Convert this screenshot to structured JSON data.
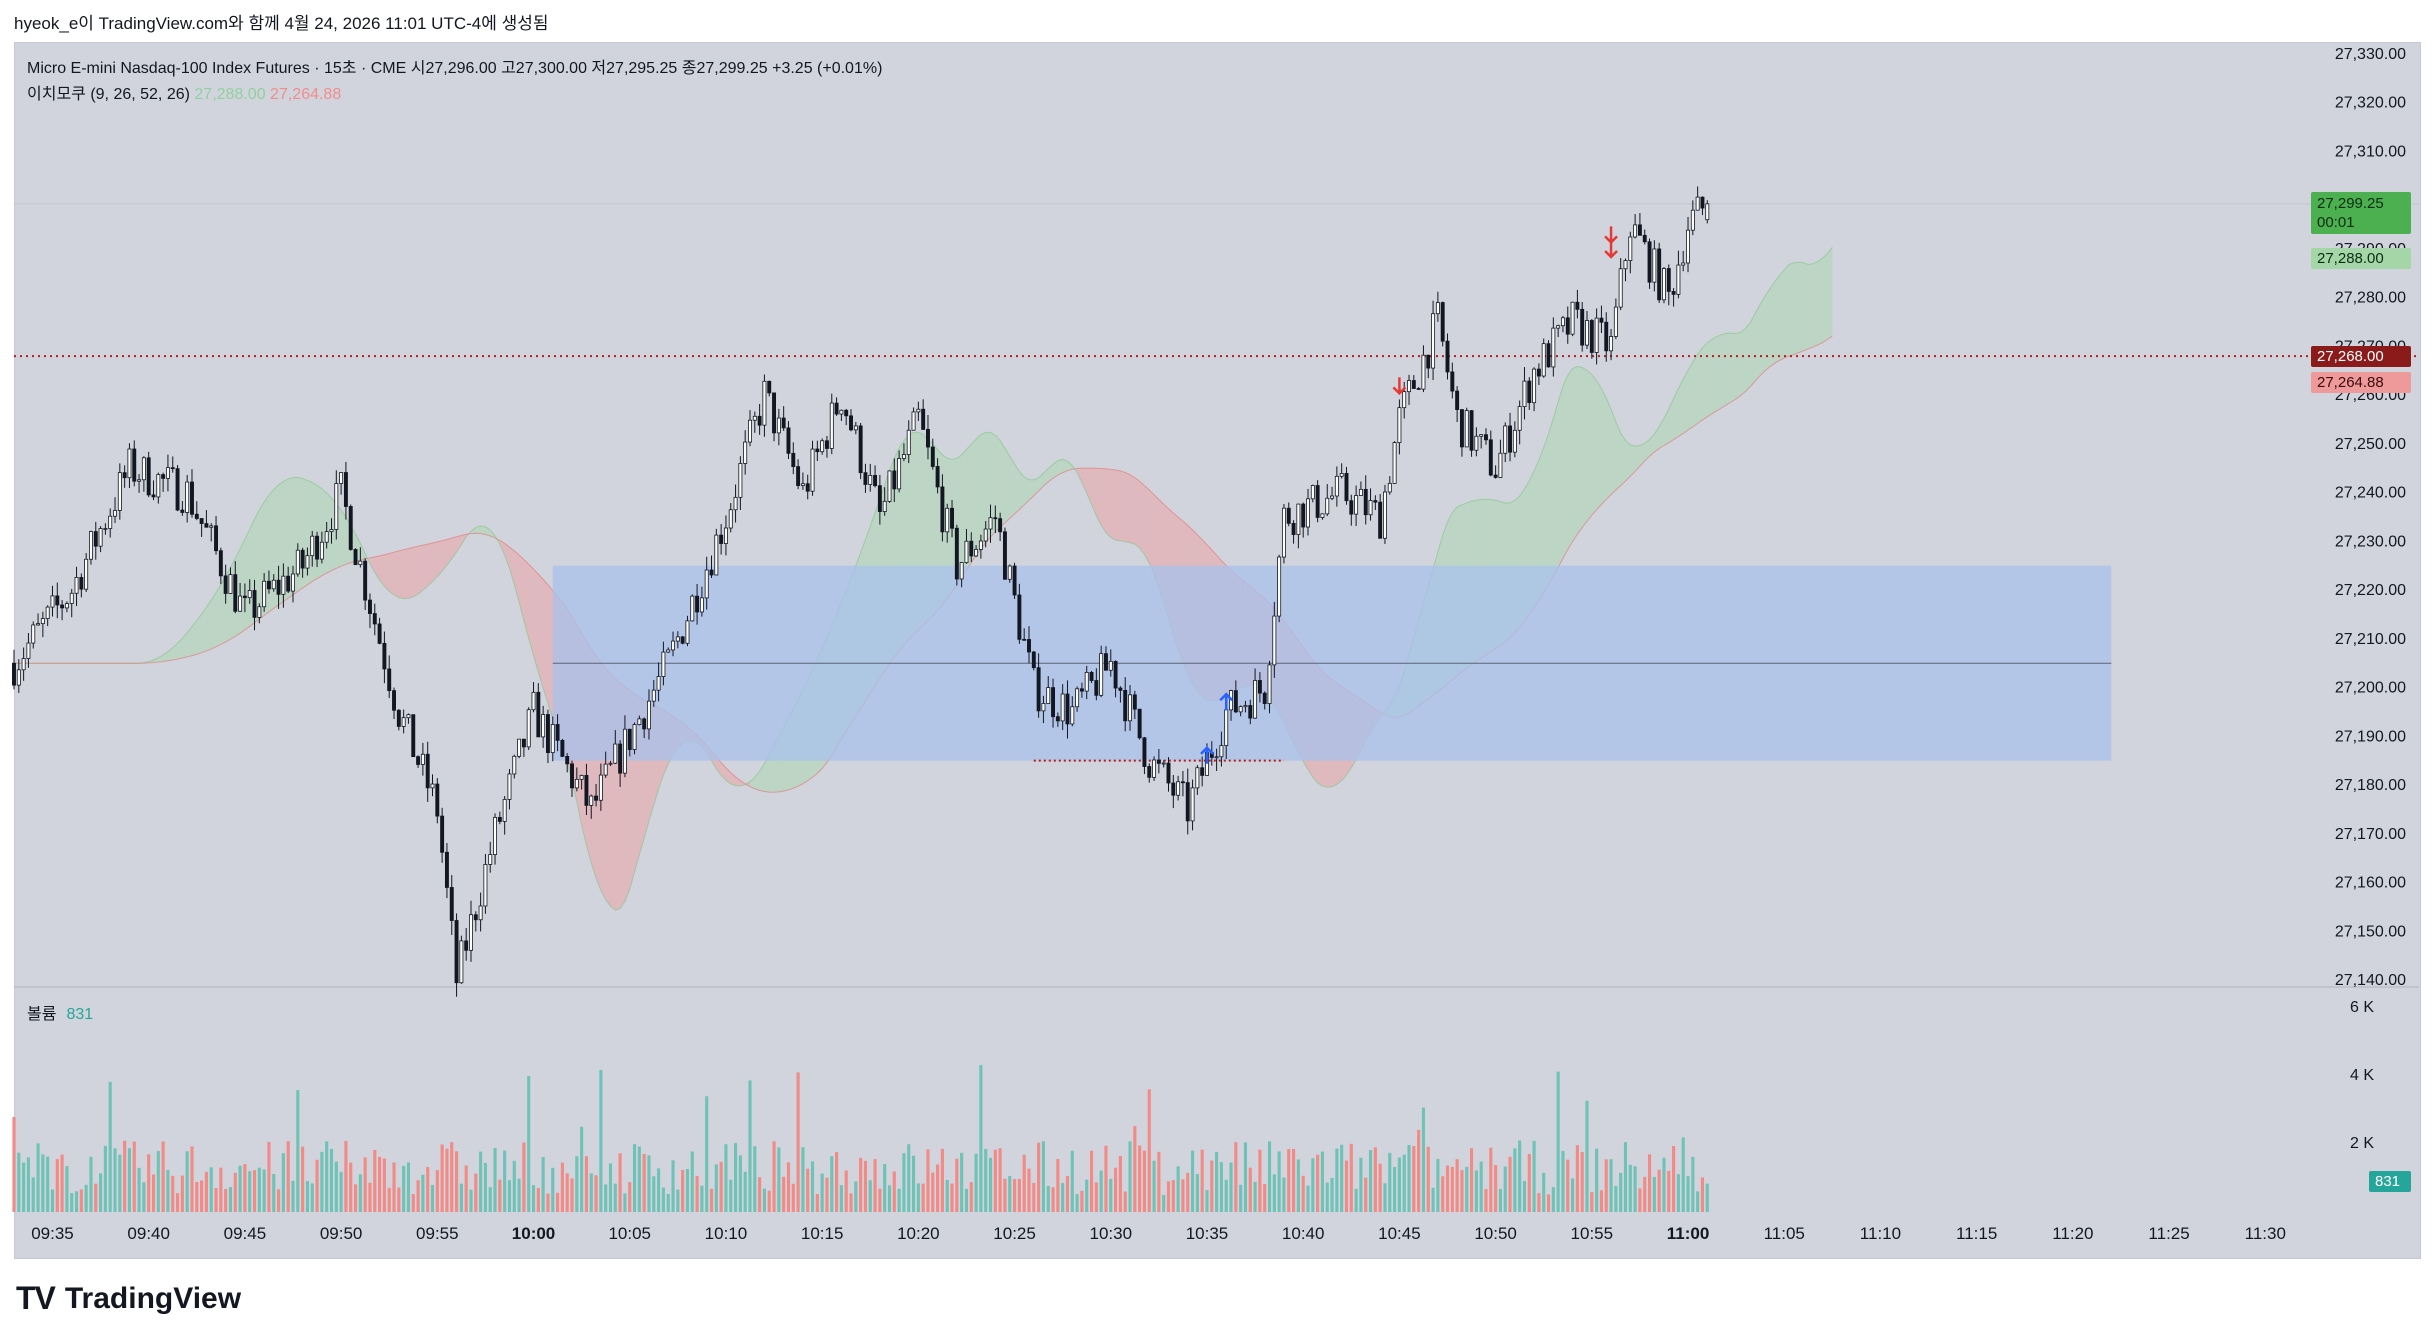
{
  "header": {
    "credit": "hyeok_e이 TradingView.com와 함께 4월 24, 2026 11:01 UTC-4에 생성됨"
  },
  "legend": {
    "symbol_line": "Micro E-mini Nasdaq-100 Index Futures · 15초 · CME  시27,296.00  고27,300.00  저27,295.25  종27,299.25  +3.25 (+0.01%)",
    "ichimoku_label": "이치모쿠 (9, 26, 52, 26)",
    "ichimoku_v1": "27,288.00",
    "ichimoku_v2": "27,264.88"
  },
  "volume": {
    "label": "볼륨",
    "value": "831",
    "badge": "831",
    "axis": [
      "6 K",
      "4 K",
      "2 K"
    ]
  },
  "price_axis": [
    "27,330.00",
    "27,320.00",
    "27,310.00",
    "27,300.00",
    "27,290.00",
    "27,280.00",
    "27,270.00",
    "27,260.00",
    "27,250.00",
    "27,240.00",
    "27,230.00",
    "27,220.00",
    "27,210.00",
    "27,200.00",
    "27,190.00",
    "27,180.00",
    "27,170.00",
    "27,160.00",
    "27,150.00",
    "27,140.00"
  ],
  "price_labels": {
    "last": "27,299.25",
    "countdown": "00:01",
    "tenkan": "27,288.00",
    "line_level": "27,268.00",
    "kijun": "27,264.88"
  },
  "time_axis": [
    "09:35",
    "09:40",
    "09:45",
    "09:50",
    "09:55",
    "10:00",
    "10:05",
    "10:10",
    "10:15",
    "10:20",
    "10:25",
    "10:30",
    "10:35",
    "10:40",
    "10:45",
    "10:50",
    "10:55",
    "11:00",
    "11:05",
    "11:10",
    "11:15",
    "11:20",
    "11:25",
    "11:30"
  ],
  "colors": {
    "up": "#26a69a",
    "down": "#ef5350",
    "zone": "#a9c1ec",
    "cloud_bull": "#a5d6a7",
    "cloud_bear": "#ef9a9a",
    "level": "#b71c1c"
  },
  "footer": {
    "brand": "TradingView"
  },
  "chart_data": {
    "type": "candlestick",
    "interval": "15초",
    "y_range": [
      27140,
      27330
    ],
    "x_range": [
      "09:33",
      "11:33"
    ],
    "approx_close_path": [
      [
        "09:33",
        27205
      ],
      [
        "09:36",
        27220
      ],
      [
        "09:39",
        27245
      ],
      [
        "09:42",
        27240
      ],
      [
        "09:45",
        27215
      ],
      [
        "09:48",
        27225
      ],
      [
        "09:50",
        27240
      ],
      [
        "09:53",
        27195
      ],
      [
        "09:55",
        27175
      ],
      [
        "09:56",
        27140
      ],
      [
        "09:58",
        27170
      ],
      [
        "10:00",
        27195
      ],
      [
        "10:03",
        27175
      ],
      [
        "10:05",
        27190
      ],
      [
        "10:07",
        27205
      ],
      [
        "10:10",
        27235
      ],
      [
        "10:12",
        27260
      ],
      [
        "10:14",
        27240
      ],
      [
        "10:16",
        27260
      ],
      [
        "10:18",
        27235
      ],
      [
        "10:20",
        27255
      ],
      [
        "10:22",
        27225
      ],
      [
        "10:24",
        27235
      ],
      [
        "10:26",
        27200
      ],
      [
        "10:28",
        27195
      ],
      [
        "10:30",
        27205
      ],
      [
        "10:32",
        27185
      ],
      [
        "10:34",
        27175
      ],
      [
        "10:36",
        27195
      ],
      [
        "10:38",
        27200
      ],
      [
        "10:39",
        27235
      ],
      [
        "10:42",
        27240
      ],
      [
        "10:44",
        27235
      ],
      [
        "10:45",
        27255
      ],
      [
        "10:47",
        27275
      ],
      [
        "10:48",
        27255
      ],
      [
        "10:50",
        27245
      ],
      [
        "10:52",
        27265
      ],
      [
        "10:54",
        27275
      ],
      [
        "10:56",
        27270
      ],
      [
        "10:57",
        27295
      ],
      [
        "10:59",
        27280
      ],
      [
        "11:00",
        27295
      ],
      [
        "11:01",
        27299.25
      ]
    ],
    "zone": {
      "from": "10:01",
      "to": "11:22",
      "low": 27185,
      "high": 27225
    },
    "level_line": 27268
  }
}
